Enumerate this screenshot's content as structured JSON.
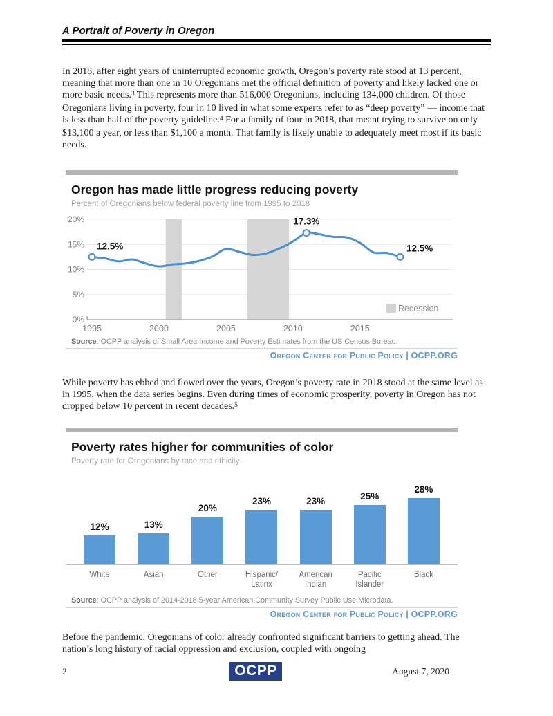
{
  "page": {
    "header_title": "A Portrait of Poverty in Oregon",
    "footer": {
      "page_number": "2",
      "logo_text": "OCPP",
      "date": "August 7, 2020"
    }
  },
  "paragraphs": {
    "p1a": "In 2018, after eight years of uninterrupted economic growth, Oregon’s poverty rate stood at 13 percent, meaning that more than one in 10 Oregonians met the official definition of poverty and likely lacked one or more basic needs.",
    "p1_sup1": "3",
    "p1b": " This represents more than 516,000 Oregonians, including 134,000 children. Of those Oregonians living in poverty, four in 10 lived in what some experts refer to as “deep poverty” — income that is less than half of the poverty guideline.",
    "p1_sup2": "4",
    "p1c": " For a family of four in 2018, that meant trying to survive on only $13,100 a year, or less than $1,100 a month. That family is likely unable to adequately meet most if its basic needs.",
    "p2a": "While poverty has ebbed and flowed over the years, Oregon’s poverty rate in 2018 stood at the same level as in 1995, when the data series begins. Even during times of economic prosperity, poverty in Oregon has not dropped below 10 percent in recent decades.",
    "p2_sup": "5",
    "p3": "Before the pandemic, Oregonians of color already confronted significant barriers to getting ahead. The nation’s long history of racial oppression and exclusion, coupled with ongoing"
  },
  "chart_data": [
    {
      "type": "line",
      "title": "Oregon has made little progress reducing poverty",
      "subtitle": "Percent of Oregonians below federal poverty line from 1995 to 2018",
      "x": [
        1995,
        1996,
        1997,
        1998,
        1999,
        2000,
        2001,
        2002,
        2003,
        2004,
        2005,
        2006,
        2007,
        2008,
        2009,
        2010,
        2011,
        2012,
        2013,
        2014,
        2015,
        2016,
        2017,
        2018
      ],
      "values": [
        12.5,
        12.2,
        11.6,
        12.0,
        11.2,
        10.6,
        11.0,
        11.2,
        11.7,
        12.6,
        14.1,
        13.5,
        12.9,
        13.2,
        14.2,
        15.6,
        17.3,
        17.0,
        16.5,
        16.4,
        15.3,
        13.4,
        13.3,
        12.5
      ],
      "ylim": [
        0,
        20
      ],
      "ytick_values": [
        0,
        5,
        10,
        15,
        20
      ],
      "ytick_labels": [
        "0%",
        "5%",
        "10%",
        "15%",
        "20%"
      ],
      "xtick_years": [
        1995,
        2000,
        2005,
        2010,
        2015
      ],
      "point_labels": [
        {
          "year": 1995,
          "value": 12.5,
          "text": "12.5%"
        },
        {
          "year": 2011,
          "value": 17.3,
          "text": "17.3%"
        },
        {
          "year": 2018,
          "value": 12.5,
          "text": "12.5%"
        }
      ],
      "recession_bands": [
        [
          2000.5,
          2001.7
        ],
        [
          2006.6,
          2009.7
        ]
      ],
      "legend_label": "Recession",
      "colors": {
        "line": "#4a90d2",
        "band": "#d6d6d6",
        "grid": "#e7e7e7",
        "axis": "#a8a8a8",
        "tick_text": "#7d7d7d",
        "legend_text": "#909090",
        "label_text": "#111111"
      },
      "source_label": "Source",
      "source_rest": ": OCPP analysis of Small Area Income and Poverty Estimates from the US Census Bureau.",
      "credit": "Oregon Center for Public Policy | OCPP.ORG"
    },
    {
      "type": "bar",
      "title": "Poverty rates higher for communities of color",
      "subtitle": "Poverty rate for Oregonians by race and ethicity",
      "categories": [
        [
          "White"
        ],
        [
          "Asian"
        ],
        [
          "Other"
        ],
        [
          "Hispanic/",
          "Latinx"
        ],
        [
          "American",
          "Indian"
        ],
        [
          "Pacific",
          "Islander"
        ],
        [
          "Black"
        ]
      ],
      "values": [
        12,
        13,
        20,
        23,
        23,
        25,
        28
      ],
      "value_labels": [
        "12%",
        "13%",
        "20%",
        "23%",
        "23%",
        "25%",
        "28%"
      ],
      "ylabel": "",
      "colors": {
        "bar": "#5b9bd5",
        "baseline": "#c0c0c0"
      },
      "source_label": "Source",
      "source_rest": ": OCPP analysis of 2014-2018 5-year American Community Survey Public Use Microdata.",
      "credit": "Oregon Center for Public Policy | OCPP.ORG"
    }
  ]
}
